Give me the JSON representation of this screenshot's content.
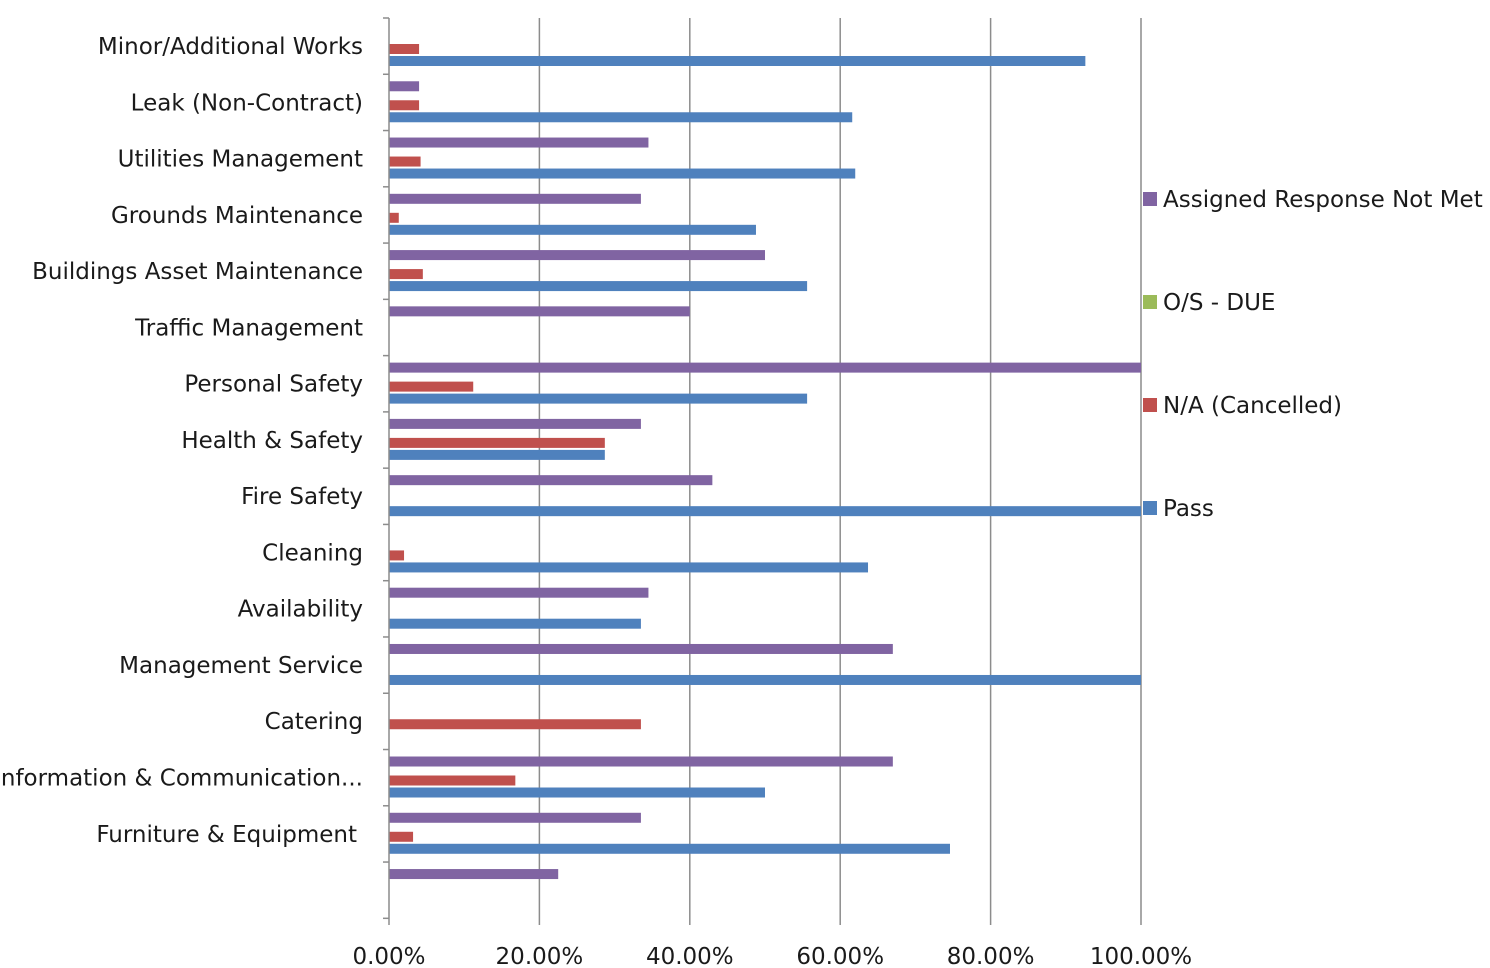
{
  "chart_data": {
    "type": "bar",
    "orientation": "horizontal",
    "title": "",
    "xlabel": "",
    "ylabel": "",
    "xlim": [
      0,
      100
    ],
    "x_ticks": [
      "0.00%",
      "20.00%",
      "40.00%",
      "60.00%",
      "80.00%",
      "100.00%"
    ],
    "grid": "vertical",
    "legend_position": "right",
    "categories": [
      "Minor/Additional Works",
      "Leak (Non-Contract)",
      "Utilities Management",
      "Grounds Maintenance",
      "Buildings Asset Maintenance",
      "Traffic Management",
      "Personal Safety",
      "Health & Safety",
      "Fire Safety",
      "Cleaning",
      "Availability",
      "Management Service",
      "Catering",
      "Information & Communication...",
      "Furniture & Equipment"
    ],
    "series": [
      {
        "name": "Assigned Response Not Met",
        "color": "#8064a2",
        "values": [
          4,
          34.5,
          33.5,
          50,
          40,
          100,
          33.5,
          43,
          0,
          34.5,
          67,
          0,
          67,
          33.5,
          22.5
        ]
      },
      {
        "name": "O/S - DUE",
        "color": "#9bbb59",
        "values": [
          0,
          0,
          0,
          0,
          0,
          0,
          0,
          0,
          0,
          0,
          0,
          0,
          0,
          0,
          0
        ]
      },
      {
        "name": "N/A (Cancelled)",
        "color": "#c0504d",
        "values": [
          4,
          4,
          4.2,
          1.3,
          4.5,
          0,
          11.2,
          28.7,
          0,
          2,
          0,
          0,
          33.5,
          16.8,
          3.2
        ]
      },
      {
        "name": "Pass",
        "color": "#4f81bd",
        "values": [
          92.6,
          61.6,
          62,
          48.8,
          55.6,
          0,
          55.6,
          28.7,
          100,
          63.7,
          33.5,
          100,
          0,
          50,
          74.6
        ]
      }
    ]
  }
}
